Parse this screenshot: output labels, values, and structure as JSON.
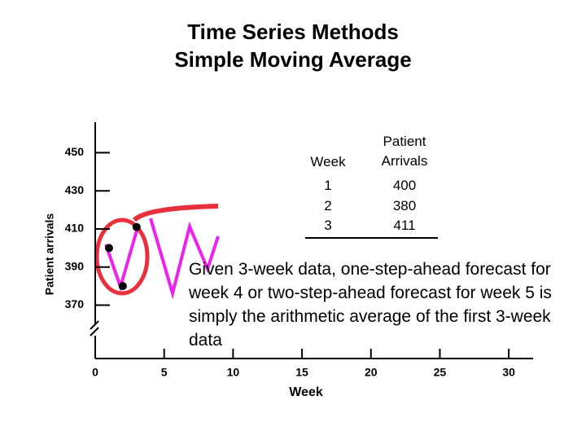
{
  "chart_data": {
    "type": "scatter",
    "title": "Time Series Methods",
    "subtitle": "Simple Moving Average",
    "x_label": "Week",
    "y_label": "Patient arrivals",
    "x": [
      1,
      2,
      3
    ],
    "values": [
      400,
      380,
      411
    ],
    "color": "#000000",
    "xlim": [
      0,
      32
    ],
    "xticks": [
      0,
      5,
      10,
      15,
      20,
      25,
      30
    ],
    "ylim": [
      342,
      466
    ],
    "yticks": [
      370,
      390,
      410,
      430,
      450
    ],
    "table": {
      "columns": [
        "Week",
        "Patient Arrivals"
      ]
    },
    "annotation": "Given 3-week data, one-step-ahead forecast for week 4 or two-step-ahead forecast for week 5 is simply the arithmetic average of the first 3-week data"
  }
}
